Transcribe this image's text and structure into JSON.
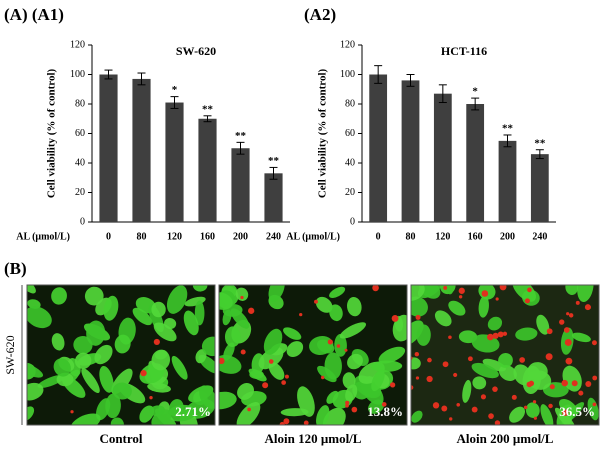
{
  "chart_data": [
    {
      "type": "bar",
      "panel": "(A) (A1)",
      "title": "SW-620",
      "y_label": "Cell viability (% of control)",
      "x_label": "AL (μmol/L)",
      "categories": [
        "0",
        "80",
        "120",
        "160",
        "200",
        "240"
      ],
      "values": [
        100,
        97,
        81,
        70,
        50,
        33
      ],
      "errors": [
        3,
        4,
        4,
        2,
        4,
        4
      ],
      "annotations": [
        null,
        null,
        "*",
        "**",
        "**",
        "**"
      ],
      "color": "#3f3f3f",
      "ylim": [
        0,
        120
      ],
      "yticks": [
        0,
        20,
        40,
        60,
        80,
        100,
        120
      ]
    },
    {
      "type": "bar",
      "panel": "(A2)",
      "title": "HCT-116",
      "y_label": "Cell viability (% of control)",
      "x_label": "AL (μmol/L)",
      "categories": [
        "0",
        "80",
        "120",
        "160",
        "200",
        "240"
      ],
      "values": [
        100,
        96,
        87,
        80,
        55,
        46
      ],
      "errors": [
        6,
        4,
        6,
        4,
        4,
        3
      ],
      "annotations": [
        null,
        null,
        null,
        "*",
        "**",
        "**"
      ],
      "color": "#3f3f3f",
      "ylim": [
        0,
        120
      ],
      "yticks": [
        0,
        20,
        40,
        60,
        80,
        100,
        120
      ]
    }
  ],
  "images_panel": {
    "label": "(B)",
    "row_label": "SW-620",
    "images": [
      {
        "caption": "Control",
        "percent": "2.71%"
      },
      {
        "caption": "Aloin 120 μmol/L",
        "percent": "13.8%"
      },
      {
        "caption": "Aloin 200 μmol/L",
        "percent": "36.5%"
      }
    ]
  }
}
